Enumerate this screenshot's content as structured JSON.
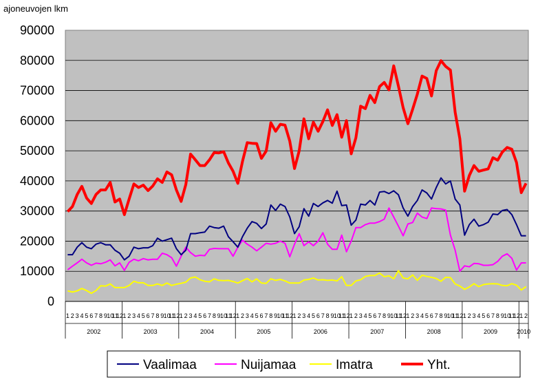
{
  "chart_data": {
    "type": "line",
    "ylabel": "ajoneuvojen lkm",
    "ylim": [
      0,
      90000
    ],
    "yticks": [
      "0",
      "10000",
      "20000",
      "30000",
      "40000",
      "50000",
      "60000",
      "70000",
      "80000",
      "90000"
    ],
    "years": [
      "2002",
      "2003",
      "2004",
      "2005",
      "2006",
      "2007",
      "2008",
      "2009",
      "2010"
    ],
    "months": [
      "1",
      "2",
      "3",
      "4",
      "5",
      "6",
      "7",
      "8",
      "9",
      "10",
      "11",
      "12"
    ],
    "month_count": 98,
    "grid": "horizontal",
    "legend": "bottom",
    "series": [
      {
        "name": "Vaalimaa",
        "color": "#000080",
        "values": [
          15500,
          15500,
          18000,
          19500,
          18000,
          17500,
          19000,
          19500,
          18800,
          18800,
          17000,
          16000,
          13800,
          15000,
          18000,
          17500,
          17800,
          17800,
          18500,
          21000,
          20000,
          20500,
          21000,
          17500,
          15500,
          17000,
          22500,
          22500,
          22800,
          23000,
          25000,
          24500,
          24300,
          25000,
          21500,
          19800,
          18000,
          21500,
          24300,
          26500,
          25900,
          24200,
          25700,
          32000,
          30200,
          32300,
          31500,
          28000,
          22500,
          24800,
          30800,
          28300,
          32500,
          31500,
          32700,
          33500,
          32600,
          36600,
          31800,
          32000,
          25300,
          27000,
          32300,
          32000,
          33500,
          32000,
          36300,
          36500,
          35800,
          36700,
          35400,
          31000,
          28300,
          31500,
          33500,
          37000,
          36000,
          34000,
          37800,
          41000,
          39000,
          40000,
          34000,
          32000,
          22000,
          25500,
          27300,
          25000,
          25500,
          26300,
          29000,
          28800,
          30200,
          30500,
          28800,
          25500,
          21800,
          21800
        ]
      },
      {
        "name": "Nuijamaa",
        "color": "#ff00ff",
        "values": [
          10500,
          11700,
          12800,
          14000,
          12800,
          12000,
          12700,
          12500,
          13000,
          13800,
          11800,
          12800,
          10300,
          13000,
          14000,
          13500,
          14200,
          13800,
          14000,
          14000,
          16000,
          15500,
          14500,
          11700,
          15000,
          18000,
          16200,
          15000,
          15300,
          15200,
          17300,
          17600,
          17500,
          17500,
          17500,
          15000,
          18000,
          20300,
          19000,
          18000,
          16800,
          18000,
          19300,
          19000,
          19300,
          20000,
          19300,
          14800,
          19000,
          22500,
          18500,
          19800,
          18500,
          20000,
          22800,
          19000,
          17300,
          17300,
          22000,
          16500,
          20000,
          24500,
          24500,
          25500,
          26000,
          26000,
          26500,
          27300,
          31000,
          28000,
          25000,
          21800,
          25700,
          26200,
          29300,
          28000,
          27500,
          31000,
          30800,
          30700,
          30300,
          22000,
          17000,
          10000,
          11800,
          11500,
          12600,
          12500,
          12000,
          12000,
          12200,
          13300,
          15000,
          15800,
          14300,
          10400,
          12800,
          12800
        ]
      },
      {
        "name": "Imatra",
        "color": "#ffff00",
        "values": [
          3500,
          3100,
          3500,
          4300,
          3600,
          2700,
          3600,
          5200,
          5100,
          5800,
          4600,
          4600,
          4600,
          5300,
          6700,
          6200,
          6200,
          5300,
          5300,
          5800,
          5300,
          6100,
          5300,
          5700,
          6000,
          6400,
          7800,
          8100,
          7200,
          6700,
          6500,
          7500,
          7000,
          6900,
          7000,
          6600,
          6100,
          6900,
          7600,
          6500,
          7500,
          6100,
          6000,
          7500,
          7000,
          7300,
          6800,
          6100,
          6100,
          6100,
          7100,
          7300,
          7800,
          7100,
          7200,
          7000,
          7100,
          6800,
          8200,
          5300,
          5300,
          6800,
          7200,
          8300,
          8600,
          8600,
          9400,
          8200,
          8500,
          7500,
          10200,
          7800,
          7500,
          8800,
          7000,
          8700,
          8300,
          8000,
          7600,
          6700,
          8000,
          7900,
          5800,
          5100,
          4000,
          4800,
          5900,
          4900,
          5600,
          5800,
          5900,
          5800,
          5300,
          5200,
          5900,
          5400,
          3800,
          4900
        ]
      },
      {
        "name": "Yht.",
        "color": "#ff0000",
        "values": [
          29800,
          31500,
          35500,
          38200,
          34300,
          32500,
          35500,
          37000,
          37000,
          39500,
          33000,
          34000,
          28800,
          34000,
          39000,
          37800,
          38600,
          36800,
          38300,
          40700,
          39500,
          43000,
          42000,
          37000,
          33200,
          38800,
          48900,
          47000,
          45100,
          45100,
          47000,
          49400,
          49300,
          49700,
          46000,
          43200,
          39200,
          46500,
          52700,
          52500,
          52400,
          47500,
          49900,
          59300,
          56500,
          58800,
          58500,
          53200,
          44100,
          50000,
          60600,
          54000,
          59500,
          56500,
          59700,
          63600,
          58400,
          62000,
          54500,
          60000,
          49000,
          54300,
          64800,
          64000,
          68400,
          66000,
          71300,
          72700,
          70200,
          78200,
          71500,
          64300,
          59000,
          63800,
          68800,
          74800,
          74000,
          68200,
          76600,
          79900,
          78000,
          76800,
          62800,
          54000,
          36600,
          41800,
          45100,
          43200,
          43600,
          44000,
          47700,
          46900,
          49600,
          51100,
          50500,
          46100,
          36100,
          39200
        ]
      }
    ]
  }
}
